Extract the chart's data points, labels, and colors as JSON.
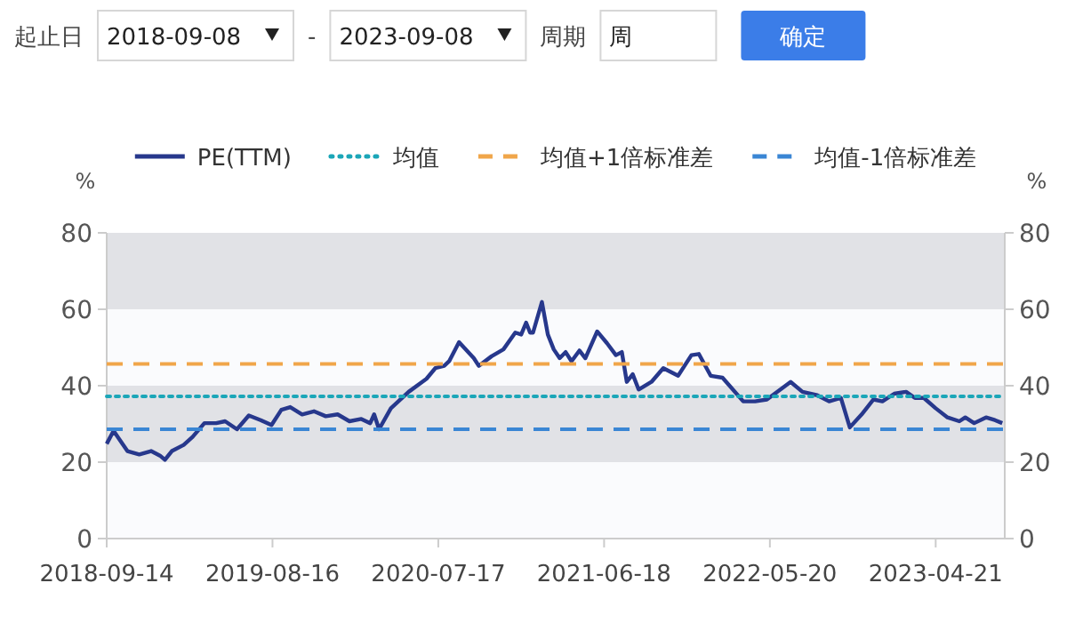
{
  "chart_data": {
    "type": "line",
    "annotations": [
      "起止日",
      "2018-09-08",
      "-",
      "2023-09-08",
      "周期",
      "周",
      "确定"
    ],
    "ylabel": "%",
    "y2label": "%",
    "xlim": [
      "2018-09-14",
      "2023-09-08"
    ],
    "xticks": [
      "2018-09-14",
      "2019-08-16",
      "2020-07-17",
      "2021-06-18",
      "2022-05-20",
      "2023-04-21"
    ],
    "ylim": [
      0,
      80
    ],
    "yticks": [
      0,
      20,
      40,
      60,
      80
    ],
    "y2lim": [
      0,
      80
    ],
    "y2ticks": [
      0,
      20,
      40,
      60,
      80
    ],
    "legend": "top",
    "marker": "none",
    "bands": [
      {
        "axis": "y",
        "from": 60,
        "to": 80,
        "color": "#e1e2e6"
      },
      {
        "axis": "y",
        "from": 20,
        "to": 40,
        "color": "#e1e2e6"
      }
    ],
    "series": [
      {
        "name": "PE(TTM)",
        "color": "#27388c",
        "line_style": "solid",
        "x": [
          "2018-09-14",
          "2018-09-28",
          "2018-10-08",
          "2018-10-26",
          "2018-11-19",
          "2018-12-13",
          "2018-12-31",
          "2019-01-10",
          "2019-01-24",
          "2019-02-17",
          "2019-03-07",
          "2019-03-31",
          "2019-04-24",
          "2019-05-12",
          "2019-06-05",
          "2019-06-29",
          "2019-07-23",
          "2019-08-14",
          "2019-09-03",
          "2019-09-21",
          "2019-10-15",
          "2019-11-08",
          "2019-12-02",
          "2019-12-26",
          "2020-01-19",
          "2020-02-12",
          "2020-03-01",
          "2020-03-09",
          "2020-03-19",
          "2020-04-12",
          "2020-05-18",
          "2020-06-23",
          "2020-07-11",
          "2020-07-29",
          "2020-08-08",
          "2020-08-28",
          "2020-09-27",
          "2020-10-07",
          "2020-11-02",
          "2020-11-26",
          "2020-12-20",
          "2021-01-01",
          "2021-01-11",
          "2021-01-19",
          "2021-01-25",
          "2021-02-12",
          "2021-02-24",
          "2021-03-08",
          "2021-03-20",
          "2021-04-01",
          "2021-04-13",
          "2021-04-29",
          "2021-05-11",
          "2021-06-04",
          "2021-06-24",
          "2021-07-12",
          "2021-07-24",
          "2021-08-03",
          "2021-08-15",
          "2021-08-27",
          "2021-09-22",
          "2021-10-16",
          "2021-11-15",
          "2021-12-12",
          "2021-12-27",
          "2022-01-20",
          "2022-02-13",
          "2022-03-27",
          "2022-04-20",
          "2022-05-14",
          "2022-07-01",
          "2022-07-25",
          "2022-08-24",
          "2022-09-17",
          "2022-10-11",
          "2022-10-29",
          "2022-11-22",
          "2022-12-16",
          "2023-01-03",
          "2023-01-27",
          "2023-02-20",
          "2023-03-10",
          "2023-03-28",
          "2023-04-21",
          "2023-05-15",
          "2023-06-08",
          "2023-06-20",
          "2023-07-08",
          "2023-08-01",
          "2023-08-19",
          "2023-09-03"
        ],
        "values": [
          24.8,
          28.2,
          26.3,
          22.9,
          22.0,
          22.9,
          21.7,
          20.6,
          22.9,
          24.5,
          26.6,
          30.2,
          30.2,
          30.7,
          28.6,
          32.2,
          31.0,
          29.7,
          33.7,
          34.4,
          32.5,
          33.3,
          32.0,
          32.5,
          30.7,
          31.3,
          30.2,
          32.5,
          28.6,
          34.1,
          38.4,
          41.8,
          44.6,
          45.2,
          46.4,
          51.4,
          47.2,
          45.2,
          47.7,
          49.5,
          53.9,
          53.4,
          56.5,
          53.9,
          53.9,
          61.9,
          53.4,
          49.5,
          47.2,
          48.8,
          46.4,
          49.2,
          47.2,
          54.2,
          51.1,
          48.0,
          48.8,
          41.0,
          43.0,
          39.0,
          41.0,
          44.6,
          42.6,
          48.0,
          48.3,
          42.6,
          42.1,
          35.9,
          35.9,
          36.4,
          41.0,
          38.4,
          37.5,
          35.9,
          36.8,
          29.1,
          32.5,
          36.4,
          35.9,
          37.9,
          38.4,
          36.8,
          36.8,
          34.1,
          31.7,
          30.7,
          31.7,
          30.2,
          31.7,
          31.0,
          30.2
        ]
      },
      {
        "name": "均值",
        "color": "#1ba6b8",
        "line_style": "dotted",
        "x": [
          "2018-09-14",
          "2023-09-08"
        ],
        "values": [
          37.2,
          37.2
        ]
      },
      {
        "name": "均值+1倍标准差",
        "color": "#f0a64a",
        "line_style": "dashed",
        "x": [
          "2018-09-14",
          "2023-09-08"
        ],
        "values": [
          45.7,
          45.7
        ]
      },
      {
        "name": "均值-1倍标准差",
        "color": "#3a86d4",
        "line_style": "dashed",
        "x": [
          "2018-09-14",
          "2023-09-08"
        ],
        "values": [
          28.6,
          28.6
        ]
      }
    ]
  }
}
